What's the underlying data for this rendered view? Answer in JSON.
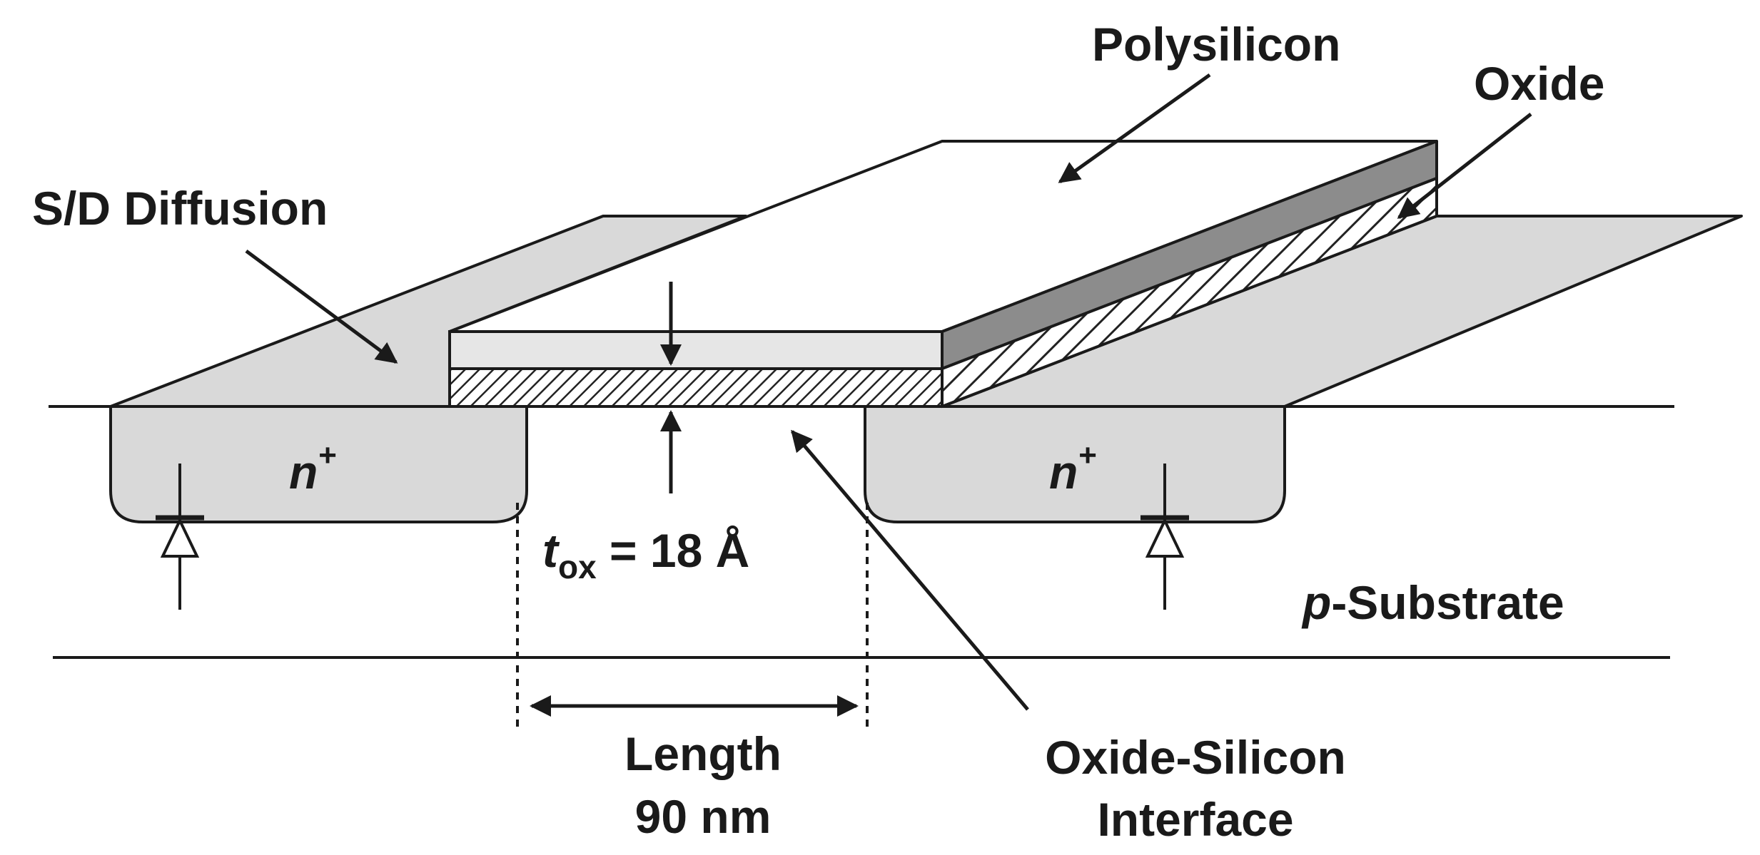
{
  "labels": {
    "polysilicon": "Polysilicon",
    "oxide": "Oxide",
    "sd_diffusion": "S/D Diffusion",
    "n_left": "n",
    "n_left_sup": "+",
    "n_right": "n",
    "n_right_sup": "+",
    "tox_t": "t",
    "tox_sub": "ox",
    "tox_value": " = 18 Å",
    "p_italic": "p",
    "substrate": "-Substrate",
    "length_line1": "Length",
    "length_line2": "90 nm",
    "interface_line1": "Oxide-Silicon",
    "interface_line2": "Interface"
  },
  "colors": {
    "diffusion_fill": "#d9d9d9",
    "poly_top": "#ffffff",
    "poly_front": "#e6e6e6",
    "poly_side": "#8c8c8c",
    "stroke": "#1a1a1a"
  }
}
